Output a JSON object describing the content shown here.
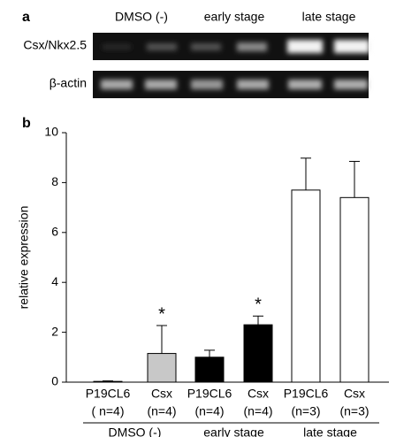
{
  "gel": {
    "panel_label": "a",
    "groups": [
      "DMSO (-)",
      "early stage",
      "late stage"
    ],
    "rows": [
      "Csx/Nkx2.5",
      "β-actin"
    ]
  },
  "chart_data": {
    "type": "bar",
    "panel_label": "b",
    "ylabel": "relative expression",
    "categories": [
      "P19CL6",
      "Csx",
      "P19CL6",
      "Csx",
      "P19CL6",
      "Csx"
    ],
    "sublabels": [
      "( n=4)",
      "(n=4)",
      "(n=4)",
      "(n=4)",
      "(n=3)",
      "(n=3)"
    ],
    "groups": [
      "DMSO (-)",
      "early stage",
      "late stage"
    ],
    "values": [
      0.03,
      1.15,
      1.0,
      2.3,
      7.7,
      7.4
    ],
    "errors": [
      0.02,
      1.12,
      0.28,
      0.35,
      1.28,
      1.45
    ],
    "colors": [
      "#ffffff",
      "#c8c8c8",
      "#000000",
      "#000000",
      "#ffffff",
      "#ffffff"
    ],
    "significance": [
      null,
      "*",
      null,
      "*",
      null,
      null
    ],
    "ylim": [
      0,
      10
    ],
    "yticks": [
      0,
      2,
      4,
      6,
      8,
      10
    ]
  }
}
